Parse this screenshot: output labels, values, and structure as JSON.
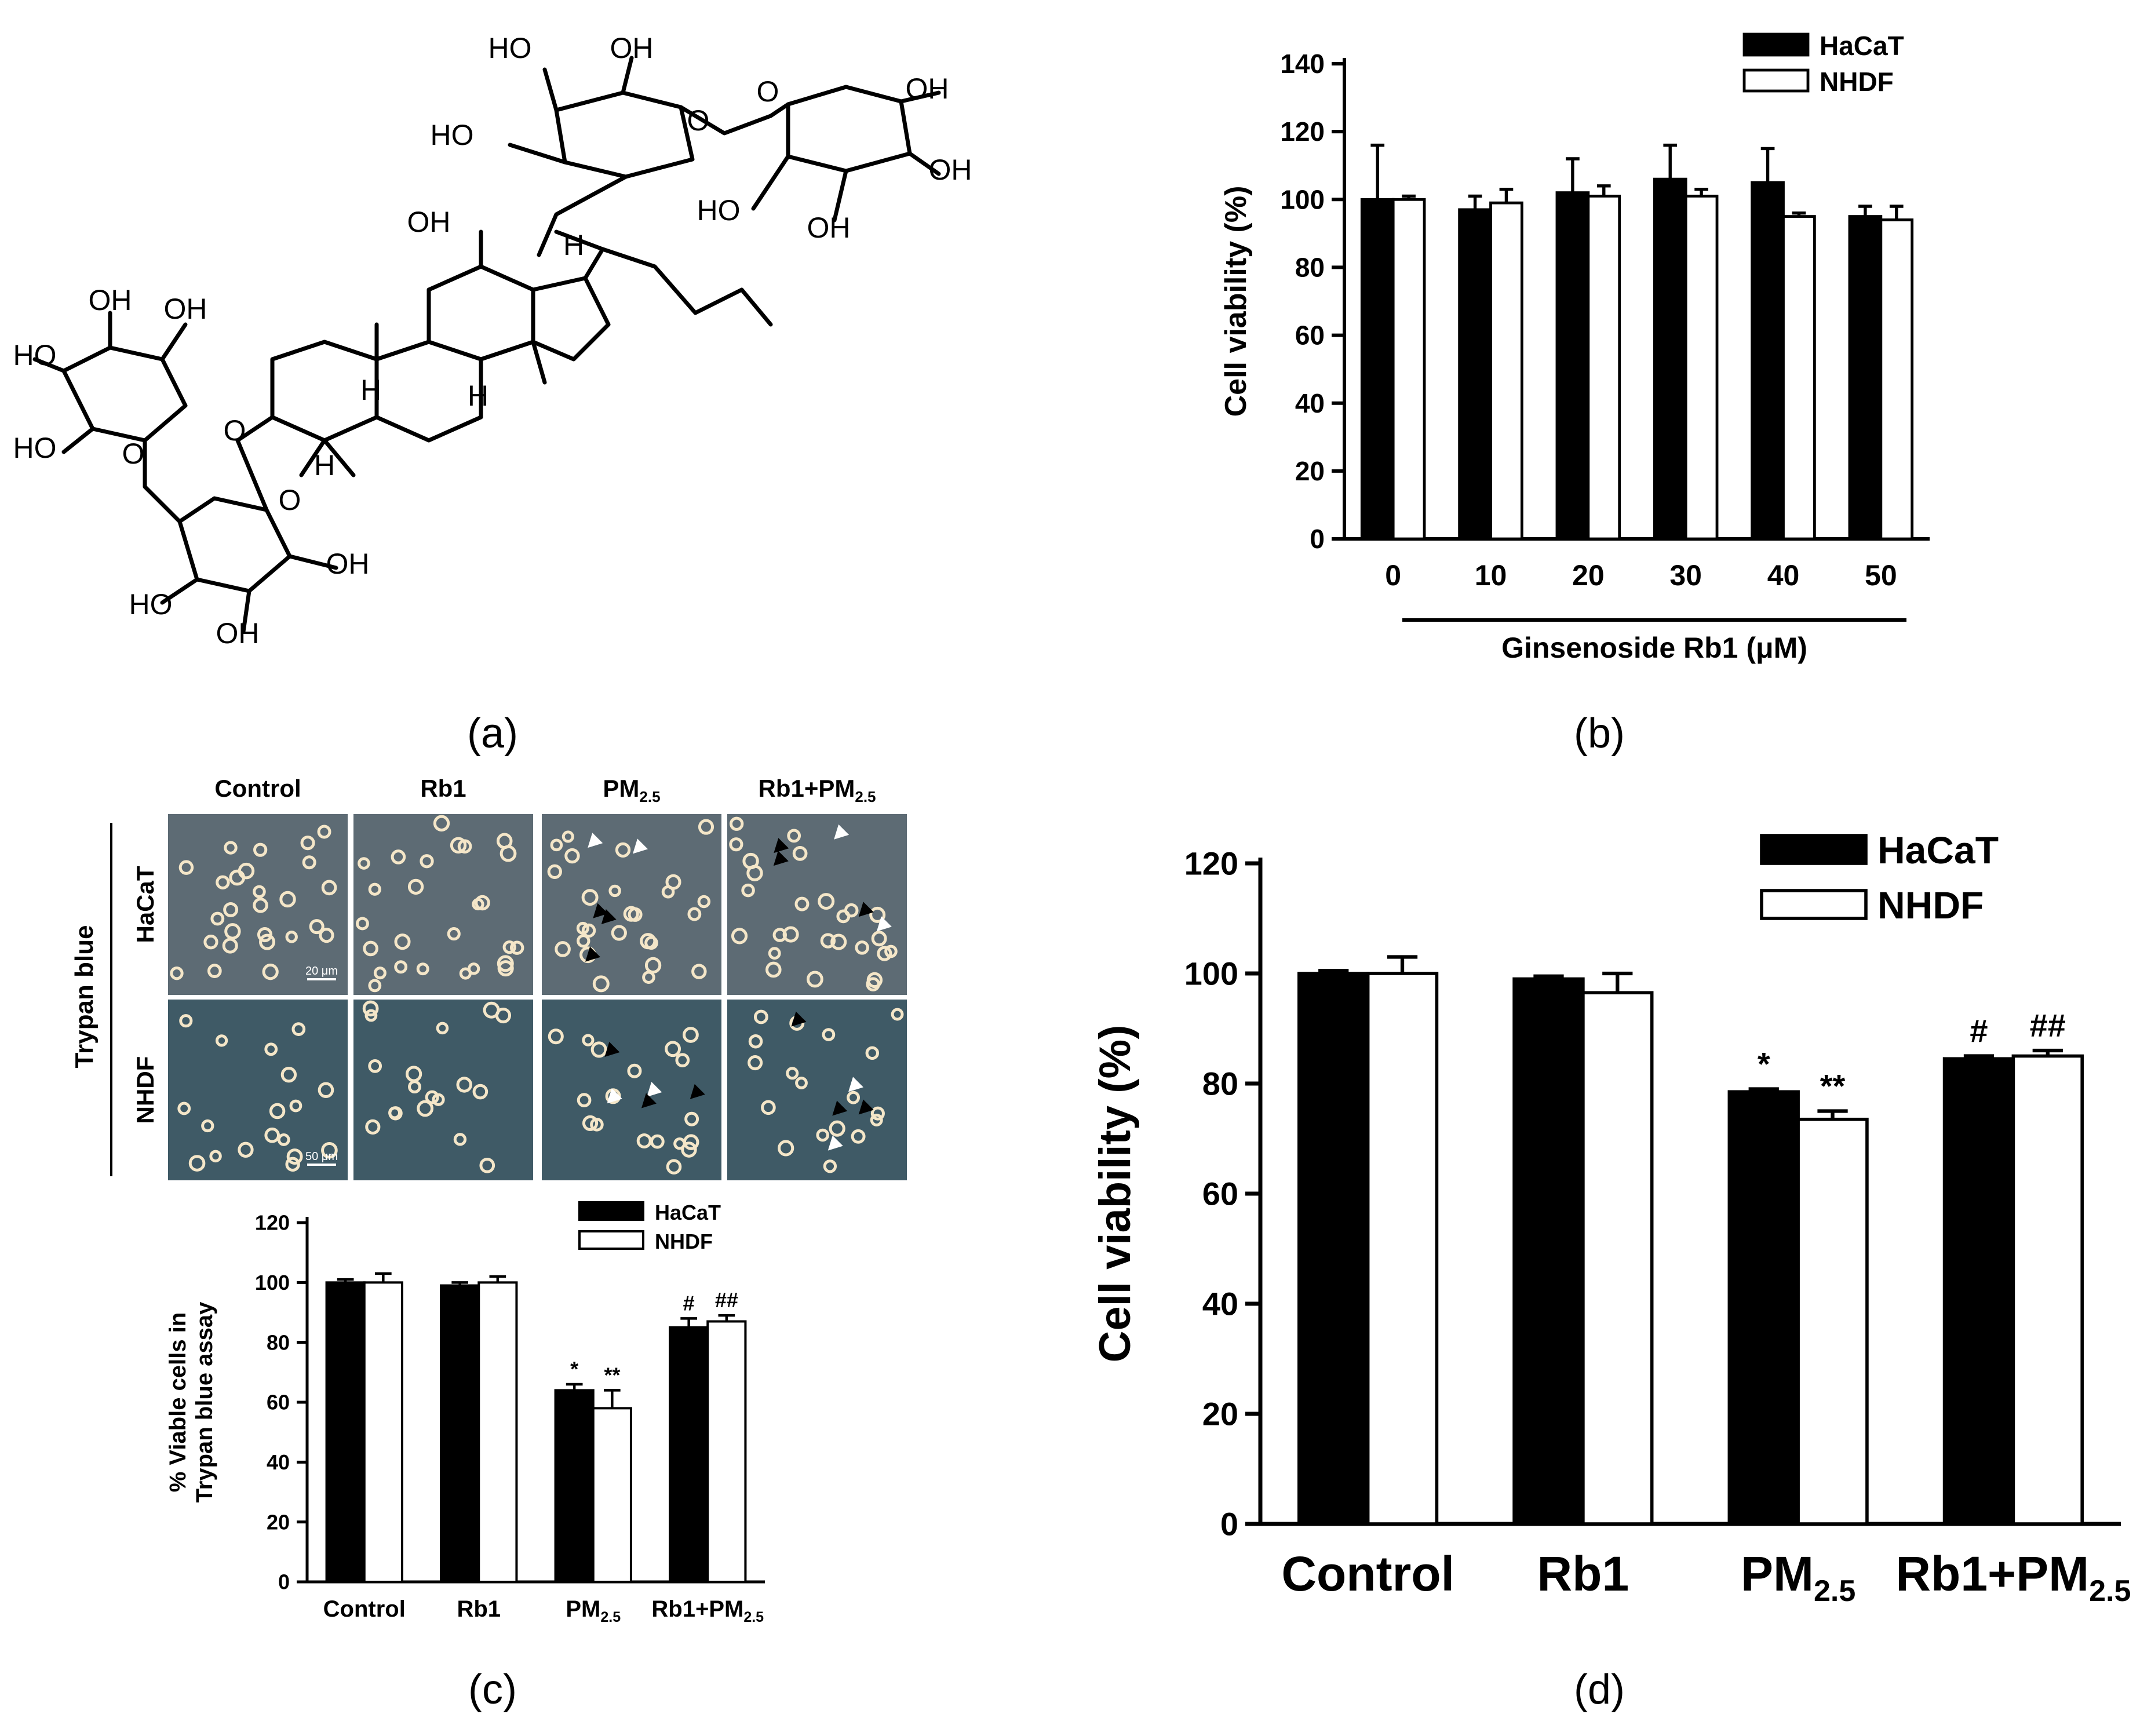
{
  "figure": {
    "panel_labels": [
      "(a)",
      "(b)",
      "(c)",
      "(d)"
    ]
  },
  "panel_a": {
    "structure_labels": [
      "HO",
      "OH",
      "OH",
      "HO",
      "O",
      "O",
      "OH",
      "HO",
      "OH",
      "OH",
      "OH",
      "HO",
      "HO",
      "O",
      "O",
      "H",
      "H",
      "H",
      "H",
      "O",
      "OH",
      "HO",
      "OH",
      "OH"
    ]
  },
  "panel_c_images": {
    "columns": [
      "Control",
      "Rb1",
      "PM",
      "Rb1+PM"
    ],
    "subscript": "2.5",
    "rows": [
      "HaCaT",
      "NHDF"
    ],
    "group_label": "Trypan blue",
    "scale_bars": [
      "20 μm",
      "50 μm"
    ],
    "colors": {
      "haCaT_bg": "#5d6b74",
      "nhdf_bg": "#3f5a66",
      "cell": "#f4e6c8",
      "arrow_dark": "#000000",
      "arrow_light": "#ffffff"
    }
  },
  "colors": {
    "hacat": "#000000",
    "nhdf": "#ffffff",
    "axis": "#000000"
  },
  "chart_data": [
    {
      "panel": "b",
      "type": "bar",
      "categories": [
        "0",
        "10",
        "20",
        "30",
        "40",
        "50"
      ],
      "series": [
        {
          "name": "HaCaT",
          "values": [
            100,
            97,
            102,
            106,
            105,
            95
          ],
          "errors": [
            16,
            4,
            10,
            10,
            10,
            3
          ]
        },
        {
          "name": "NHDF",
          "values": [
            100,
            99,
            101,
            101,
            95,
            94
          ],
          "errors": [
            1,
            4,
            3,
            2,
            1,
            4
          ]
        }
      ],
      "xlabel": "Ginsenoside Rb1 (μM)",
      "ylabel": "Cell viability (%)",
      "ylim": [
        0,
        140
      ],
      "yticks": [
        0,
        20,
        40,
        60,
        80,
        100,
        120,
        140
      ],
      "legend": "top-right",
      "grid": false
    },
    {
      "panel": "c",
      "type": "bar",
      "categories": [
        {
          "main": "Control",
          "sub": ""
        },
        {
          "main": "Rb1",
          "sub": ""
        },
        {
          "main": "PM",
          "sub": "2.5"
        },
        {
          "main": "Rb1+PM",
          "sub": "2.5"
        }
      ],
      "series": [
        {
          "name": "HaCaT",
          "values": [
            100,
            99,
            64,
            85
          ],
          "errors": [
            1,
            1,
            2,
            3
          ],
          "annotations": [
            "",
            "",
            "*",
            "#"
          ]
        },
        {
          "name": "NHDF",
          "values": [
            100,
            100,
            58,
            87
          ],
          "errors": [
            3,
            2,
            6,
            2
          ],
          "annotations": [
            "",
            "",
            "**",
            "##"
          ]
        }
      ],
      "ylabel_lines": [
        "% Viable cells in",
        "Trypan blue assay"
      ],
      "ylim": [
        0,
        120
      ],
      "yticks": [
        0,
        20,
        40,
        60,
        80,
        100,
        120
      ],
      "legend": "top-right",
      "grid": false
    },
    {
      "panel": "d",
      "type": "bar",
      "categories": [
        {
          "main": "Control",
          "sub": ""
        },
        {
          "main": "Rb1",
          "sub": ""
        },
        {
          "main": "PM",
          "sub": "2.5"
        },
        {
          "main": "Rb1+PM",
          "sub": "2.5"
        }
      ],
      "series": [
        {
          "name": "HaCaT",
          "values": [
            100,
            99,
            78.5,
            84.5
          ],
          "errors": [
            0.5,
            0.5,
            0.5,
            0.5
          ],
          "annotations": [
            "",
            "",
            "*",
            "#"
          ]
        },
        {
          "name": "NHDF",
          "values": [
            100,
            96.5,
            73.5,
            85
          ],
          "errors": [
            3,
            3.5,
            1.5,
            1
          ],
          "annotations": [
            "",
            "",
            "**",
            "##"
          ]
        }
      ],
      "ylabel": "Cell viability (%)",
      "ylim": [
        0,
        120
      ],
      "yticks": [
        0,
        20,
        40,
        60,
        80,
        100,
        120
      ],
      "legend": "top-right",
      "grid": false
    }
  ]
}
